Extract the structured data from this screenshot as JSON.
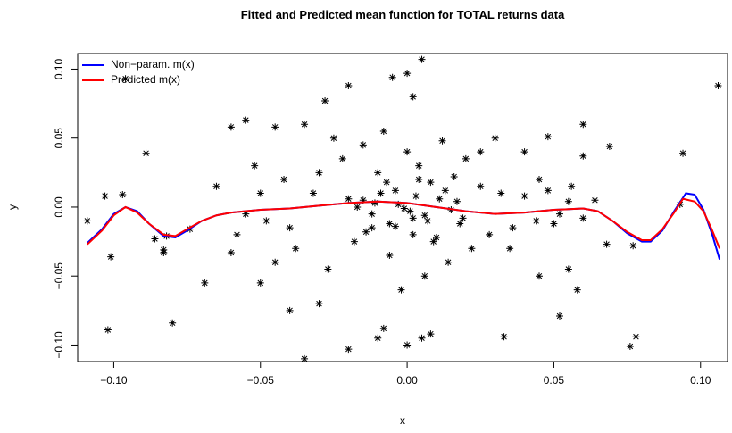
{
  "chart_data": {
    "type": "scatter",
    "title": "Fitted and Predicted mean function for TOTAL returns data",
    "x_label": "x",
    "y_label": "y",
    "xlim": [
      -0.1123,
      0.1092
    ],
    "ylim": [
      -0.112,
      0.1113
    ],
    "xticks": [
      {
        "value": -0.1,
        "label": "−0.10"
      },
      {
        "value": -0.05,
        "label": "−0.05"
      },
      {
        "value": 0,
        "label": "0.00"
      },
      {
        "value": 0.05,
        "label": "0.05"
      },
      {
        "value": 0.1,
        "label": "0.10"
      }
    ],
    "yticks": [
      {
        "value": -0.1,
        "label": "−0.10"
      },
      {
        "value": -0.05,
        "label": "−0.05"
      },
      {
        "value": 0,
        "label": "0.00"
      },
      {
        "value": 0.05,
        "label": "0.05"
      },
      {
        "value": 0.1,
        "label": "0.10"
      }
    ],
    "legend_position": "topleft",
    "points": {
      "color": "#000000",
      "x": [
        -0.096,
        -0.089,
        -0.102,
        -0.08,
        -0.103,
        -0.097,
        -0.109,
        -0.101,
        -0.083,
        -0.083,
        -0.082,
        -0.086,
        -0.074,
        -0.069,
        -0.02,
        -0.035,
        -0.02,
        -0.005,
        0.005,
        0.0,
        -0.028,
        0.002,
        -0.008,
        -0.01,
        0.0,
        0.005,
        0.008,
        0.033,
        0.052,
        0.076,
        0.078,
        0.094,
        0.106,
        0.069,
        0.06,
        0.077,
        0.093,
        0.068,
        0.058,
        0.055,
        0.045,
        0.06,
        0.048,
        -0.055,
        -0.045,
        -0.06,
        -0.05,
        -0.04,
        -0.03,
        -0.045,
        -0.06,
        0.04,
        0.03,
        0.025,
        -0.035,
        -0.025,
        -0.065,
        -0.058,
        -0.052,
        -0.048,
        -0.042,
        -0.038,
        -0.032,
        -0.027,
        -0.022,
        -0.018,
        -0.015,
        -0.012,
        -0.01,
        -0.008,
        -0.006,
        -0.004,
        -0.002,
        0.0,
        0.002,
        0.004,
        0.006,
        0.008,
        0.01,
        0.012,
        0.014,
        0.016,
        0.018,
        0.02,
        0.022,
        0.025,
        0.028,
        0.032,
        0.036,
        0.04,
        0.044,
        0.048,
        0.052,
        0.056,
        0.06,
        0.064,
        -0.015,
        -0.012,
        -0.009,
        -0.006,
        -0.003,
        0.001,
        0.003,
        0.007,
        0.011,
        0.015,
        -0.014,
        -0.007,
        0.004,
        0.009,
        0.013,
        -0.011,
        -0.001,
        0.006,
        -0.017,
        0.017,
        -0.004,
        0.002,
        -0.02,
        0.019,
        -0.03,
        0.035,
        -0.04,
        0.045,
        -0.05,
        0.05,
        -0.055,
        0.055
      ],
      "y": [
        0.093,
        0.039,
        -0.089,
        -0.084,
        0.008,
        0.009,
        -0.01,
        -0.036,
        -0.031,
        -0.033,
        -0.021,
        -0.023,
        -0.016,
        -0.055,
        0.088,
        -0.11,
        -0.103,
        0.094,
        0.107,
        0.097,
        0.077,
        0.08,
        -0.088,
        -0.095,
        -0.1,
        -0.095,
        -0.092,
        -0.094,
        -0.079,
        -0.101,
        -0.094,
        0.039,
        0.088,
        0.044,
        0.06,
        -0.028,
        0.002,
        -0.027,
        -0.06,
        -0.045,
        -0.05,
        0.037,
        0.051,
        0.063,
        0.058,
        0.058,
        -0.055,
        -0.075,
        -0.07,
        -0.04,
        -0.033,
        0.04,
        0.05,
        0.04,
        0.06,
        0.05,
        0.015,
        -0.02,
        0.03,
        -0.01,
        0.02,
        -0.03,
        0.01,
        -0.045,
        0.035,
        -0.025,
        0.045,
        -0.015,
        0.025,
        0.055,
        -0.035,
        0.012,
        -0.06,
        0.04,
        -0.008,
        0.03,
        -0.05,
        0.018,
        -0.022,
        0.048,
        -0.04,
        0.022,
        -0.012,
        0.035,
        -0.03,
        0.015,
        -0.02,
        0.01,
        -0.015,
        0.008,
        -0.01,
        0.012,
        -0.005,
        0.015,
        -0.008,
        0.005,
        0.005,
        -0.005,
        0.01,
        -0.012,
        0.002,
        -0.003,
        0.008,
        -0.01,
        0.006,
        -0.002,
        -0.018,
        0.018,
        0.02,
        -0.025,
        0.012,
        0.003,
        -0.001,
        -0.006,
        0.0,
        0.004,
        -0.014,
        -0.02,
        0.006,
        -0.008,
        0.025,
        -0.03,
        -0.015,
        0.02,
        0.01,
        -0.012,
        -0.005,
        0.004
      ]
    },
    "series": [
      {
        "name": "Non−param. m(x)",
        "color": "#0000ff",
        "x": [
          -0.109,
          -0.104,
          -0.1,
          -0.096,
          -0.092,
          -0.088,
          -0.083,
          -0.079,
          -0.075,
          -0.07,
          -0.065,
          -0.06,
          -0.05,
          -0.04,
          -0.03,
          -0.02,
          -0.01,
          0.0,
          0.01,
          0.02,
          0.03,
          0.04,
          0.05,
          0.06,
          0.065,
          0.07,
          0.075,
          0.08,
          0.083,
          0.087,
          0.091,
          0.095,
          0.098,
          0.101,
          0.104,
          0.1065
        ],
        "values": [
          -0.026,
          -0.016,
          -0.005,
          0.0,
          -0.003,
          -0.012,
          -0.021,
          -0.022,
          -0.017,
          -0.01,
          -0.006,
          -0.004,
          -0.002,
          -0.001,
          0.001,
          0.003,
          0.004,
          0.003,
          0.0,
          -0.003,
          -0.005,
          -0.004,
          -0.002,
          -0.001,
          -0.003,
          -0.01,
          -0.019,
          -0.025,
          -0.025,
          -0.017,
          -0.003,
          0.01,
          0.009,
          -0.002,
          -0.02,
          -0.038
        ]
      },
      {
        "name": "Predicted m(x)",
        "color": "#ff0000",
        "x": [
          -0.109,
          -0.104,
          -0.1,
          -0.096,
          -0.092,
          -0.088,
          -0.083,
          -0.079,
          -0.075,
          -0.07,
          -0.065,
          -0.06,
          -0.05,
          -0.04,
          -0.03,
          -0.02,
          -0.01,
          0.0,
          0.01,
          0.02,
          0.03,
          0.04,
          0.05,
          0.06,
          0.065,
          0.07,
          0.075,
          0.08,
          0.083,
          0.087,
          0.091,
          0.094,
          0.098,
          0.101,
          0.104,
          0.1065
        ],
        "values": [
          -0.027,
          -0.017,
          -0.006,
          0.0,
          -0.004,
          -0.012,
          -0.02,
          -0.021,
          -0.016,
          -0.01,
          -0.006,
          -0.004,
          -0.002,
          -0.001,
          0.001,
          0.003,
          0.004,
          0.003,
          0.0,
          -0.003,
          -0.005,
          -0.004,
          -0.002,
          -0.001,
          -0.003,
          -0.01,
          -0.018,
          -0.024,
          -0.024,
          -0.016,
          -0.004,
          0.006,
          0.004,
          -0.003,
          -0.017,
          -0.03
        ]
      }
    ]
  }
}
